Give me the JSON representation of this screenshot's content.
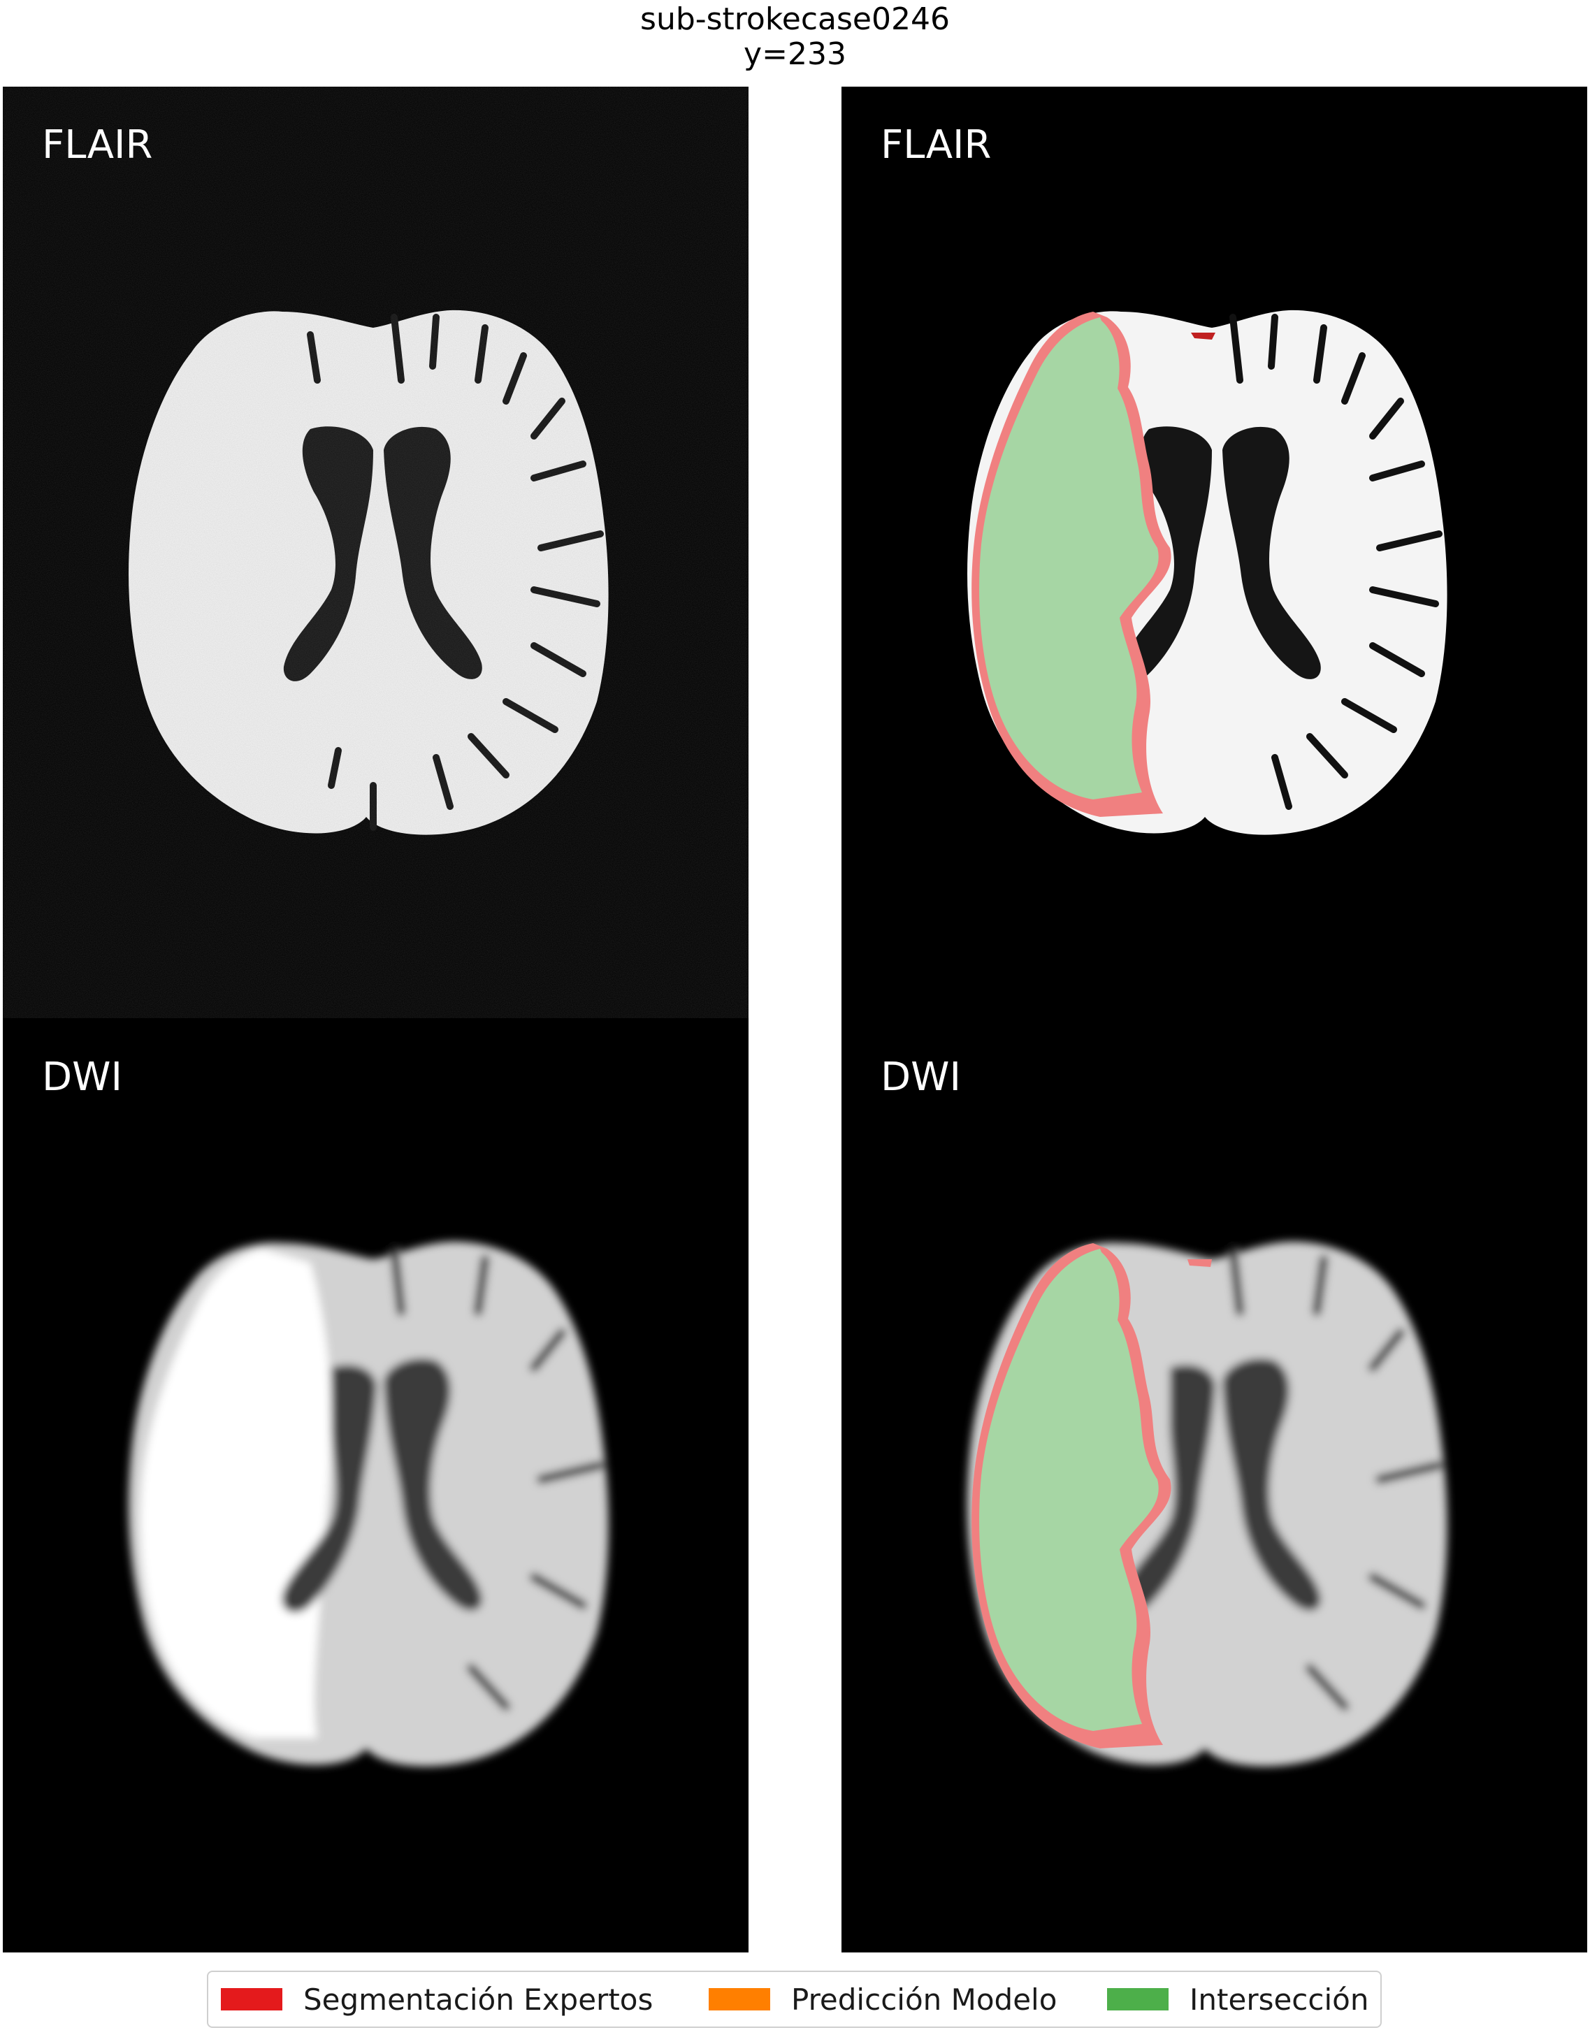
{
  "figure": {
    "title_line1": "sub-strokecase0246",
    "title_line2": "y=233"
  },
  "panels": [
    {
      "label": "FLAIR",
      "modality": "FLAIR",
      "overlay": false
    },
    {
      "label": "FLAIR",
      "modality": "FLAIR",
      "overlay": true
    },
    {
      "label": "DWI",
      "modality": "DWI",
      "overlay": false
    },
    {
      "label": "DWI",
      "modality": "DWI",
      "overlay": true
    }
  ],
  "legend": {
    "items": [
      {
        "label": "Segmentación Expertos",
        "color": "#e41a1c"
      },
      {
        "label": "Predicción Modelo",
        "color": "#ff7f00"
      },
      {
        "label": "Intersección",
        "color": "#4daf4a"
      }
    ]
  },
  "colors": {
    "background": "#000000",
    "overlay_green": "#a6d6a4",
    "overlay_red": "#f08080"
  }
}
